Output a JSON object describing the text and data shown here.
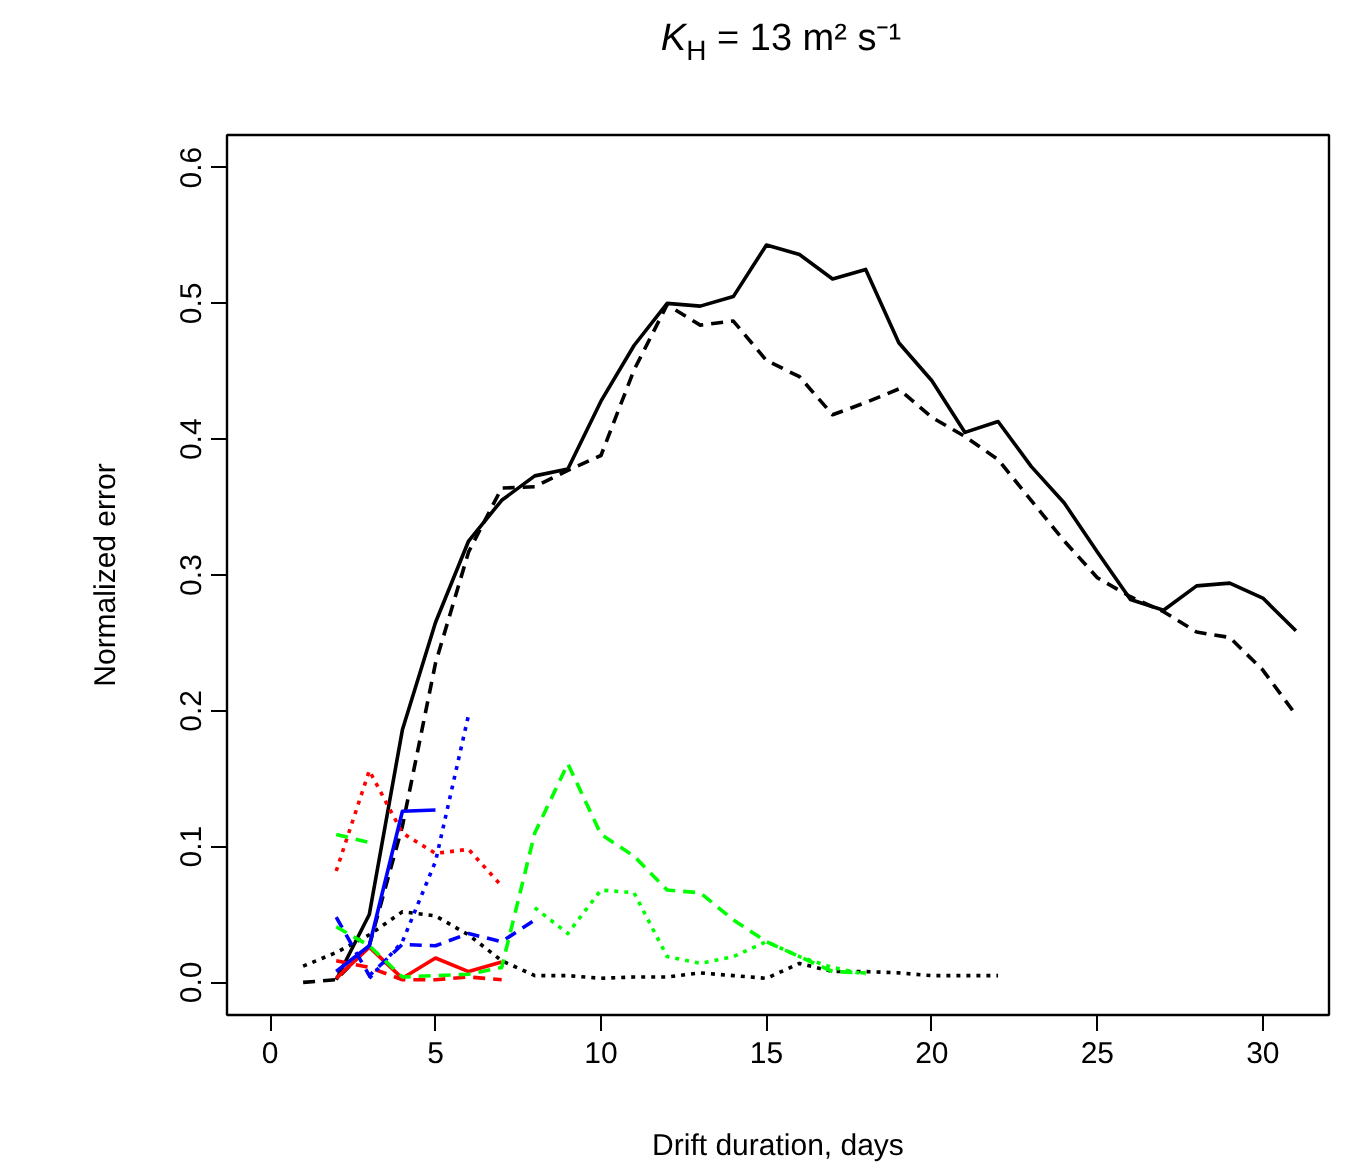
{
  "chart_data": {
    "type": "line",
    "title": "K$_{H}$ = 13 m² s⁻¹",
    "xlabel": "Drift duration, days",
    "ylabel": "Normalized error",
    "xlim": [
      -1.3,
      32.0
    ],
    "ylim": [
      -0.024,
      0.624
    ],
    "xticks": [
      0,
      5,
      10,
      15,
      20,
      25,
      30
    ],
    "yticks": [
      {
        "value": 0,
        "label": "0.0"
      },
      {
        "value": 0.1,
        "label": "0.1"
      },
      {
        "value": 0.2,
        "label": "0.2"
      },
      {
        "value": 0.3,
        "label": "0.3"
      },
      {
        "value": 0.4,
        "label": "0.4"
      },
      {
        "value": 0.5,
        "label": "0.5"
      },
      {
        "value": 0.6,
        "label": "0.6"
      }
    ],
    "grid": false,
    "series": [
      {
        "color": "#000000",
        "line_style": "solid",
        "x": [
          2,
          3,
          4,
          5,
          6,
          7,
          8,
          9,
          10,
          11,
          12,
          13,
          14,
          15,
          16,
          17,
          18,
          19,
          20,
          21,
          22,
          23,
          24,
          25,
          26,
          27,
          28,
          29,
          30,
          31
        ],
        "values": [
          0.002,
          0.05,
          0.186,
          0.265,
          0.325,
          0.355,
          0.373,
          0.378,
          0.428,
          0.469,
          0.5,
          0.498,
          0.505,
          0.543,
          0.536,
          0.518,
          0.525,
          0.471,
          0.443,
          0.405,
          0.413,
          0.38,
          0.353,
          0.317,
          0.282,
          0.274,
          0.292,
          0.294,
          0.283,
          0.259
        ]
      },
      {
        "color": "#000000",
        "line_style": "dashed",
        "x": [
          1,
          2,
          3,
          4,
          5,
          6,
          7,
          8,
          9,
          10,
          11,
          12,
          13,
          14,
          15,
          16,
          17,
          18,
          19,
          20,
          21,
          22,
          23,
          24,
          25,
          26,
          27,
          28,
          29,
          30,
          31
        ],
        "values": [
          0.0,
          0.002,
          0.027,
          0.115,
          0.235,
          0.317,
          0.364,
          0.365,
          0.377,
          0.388,
          0.451,
          0.499,
          0.484,
          0.487,
          0.458,
          0.446,
          0.418,
          0.427,
          0.437,
          0.416,
          0.402,
          0.385,
          0.355,
          0.325,
          0.298,
          0.284,
          0.273,
          0.258,
          0.254,
          0.23,
          0.197
        ]
      },
      {
        "color": "#000000",
        "line_style": "dotted",
        "x": [
          1,
          2,
          3,
          4,
          5,
          6,
          7,
          8,
          9,
          10,
          11,
          12,
          13,
          14,
          15,
          16,
          17,
          18,
          19,
          20,
          21,
          22
        ],
        "values": [
          0.012,
          0.022,
          0.035,
          0.052,
          0.049,
          0.035,
          0.016,
          0.005,
          0.005,
          0.003,
          0.004,
          0.004,
          0.007,
          0.005,
          0.003,
          0.014,
          0.008,
          0.008,
          0.007,
          0.005,
          0.005,
          0.005
        ]
      },
      {
        "color": "#ff0000",
        "line_style": "solid",
        "x": [
          2,
          3,
          4,
          5,
          6,
          7
        ],
        "values": [
          0.003,
          0.026,
          0.003,
          0.018,
          0.008,
          0.015
        ]
      },
      {
        "color": "#ff0000",
        "line_style": "dashed",
        "x": [
          2,
          3,
          4,
          5,
          6,
          7
        ],
        "values": [
          0.016,
          0.011,
          0.002,
          0.002,
          0.004,
          0.002
        ]
      },
      {
        "color": "#ff0000",
        "line_style": "dotted",
        "x": [
          2,
          3,
          4,
          5,
          6,
          7
        ],
        "values": [
          0.082,
          0.156,
          0.11,
          0.095,
          0.098,
          0.071
        ]
      },
      {
        "color": "#0000ff",
        "line_style": "solid",
        "x": [
          2,
          3,
          4,
          5
        ],
        "values": [
          0.008,
          0.027,
          0.126,
          0.127
        ]
      },
      {
        "color": "#0000ff",
        "line_style": "dashed",
        "x": [
          2,
          3,
          4,
          5,
          6,
          7,
          8
        ],
        "values": [
          0.048,
          0.005,
          0.028,
          0.027,
          0.036,
          0.03,
          0.046
        ]
      },
      {
        "color": "#0000ff",
        "line_style": "dotted",
        "x": [
          3,
          4,
          5,
          6
        ],
        "values": [
          0.003,
          0.03,
          0.089,
          0.197
        ]
      },
      {
        "color": "#00ff00",
        "line_style": "dashed",
        "x": [
          2,
          3
        ],
        "values": [
          0.109,
          0.103
        ]
      },
      {
        "color": "#00ff00",
        "line_style": "dashed",
        "x": [
          2,
          3,
          4,
          5,
          6,
          7,
          8,
          9,
          10,
          11,
          12,
          13,
          14,
          15,
          16,
          17,
          18
        ],
        "values": [
          0.041,
          0.027,
          0.004,
          0.005,
          0.006,
          0.011,
          0.11,
          0.161,
          0.109,
          0.093,
          0.068,
          0.066,
          0.046,
          0.03,
          0.019,
          0.008,
          0.007
        ]
      },
      {
        "color": "#00ff00",
        "line_style": "dotted",
        "x": [
          8,
          9,
          10,
          11,
          12,
          13,
          14,
          15,
          16,
          17,
          18
        ],
        "values": [
          0.055,
          0.036,
          0.068,
          0.066,
          0.019,
          0.014,
          0.019,
          0.03,
          0.019,
          0.011,
          0.006
        ]
      }
    ]
  }
}
